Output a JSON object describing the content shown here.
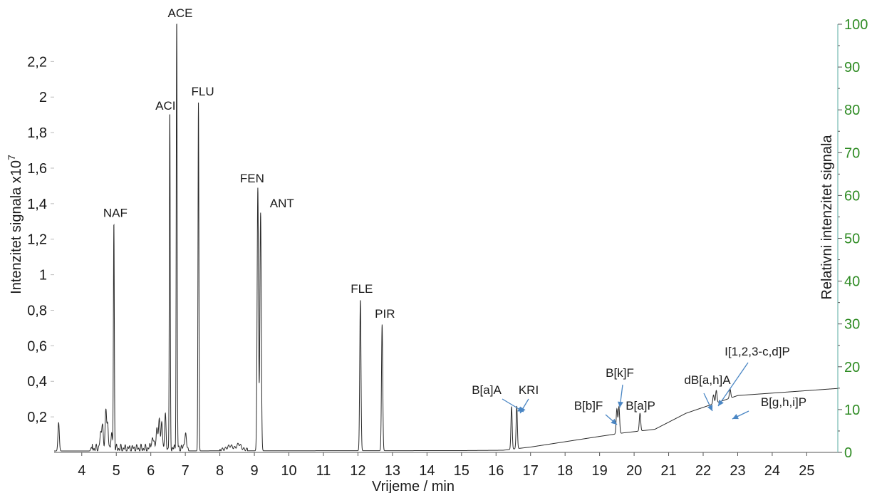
{
  "chart_data": {
    "type": "line",
    "title": "",
    "xlabel": "Vrijeme / min",
    "ylabel_left": "Intenzitet signala x10",
    "ylabel_left_exponent": "7",
    "ylabel_right": "Relativni intenzitet signala",
    "xlim": [
      3.2,
      25.9
    ],
    "ylim_left": [
      0,
      2.41
    ],
    "ylim_right": [
      0,
      100
    ],
    "x_ticks": [
      4,
      5,
      6,
      7,
      8,
      9,
      10,
      11,
      12,
      13,
      14,
      15,
      16,
      17,
      18,
      19,
      20,
      21,
      22,
      23,
      24,
      25
    ],
    "x_tick_labels": [
      "4",
      "5",
      "6",
      "7",
      "8",
      "9",
      "10",
      "11",
      "12",
      "13",
      "14",
      "15",
      "16",
      "17",
      "18",
      "19",
      "20",
      "21",
      "22",
      "23",
      "24",
      "25"
    ],
    "y_left_ticks": [
      0.2,
      0.4,
      0.6,
      0.8,
      1,
      1.2,
      1.4,
      1.6,
      1.8,
      2,
      2.2
    ],
    "y_left_tick_labels": [
      "0,2",
      "0,4",
      "0,6",
      "0,8",
      "1",
      "1,2",
      "1,4",
      "1,6",
      "1,8",
      "2",
      "2,2"
    ],
    "y_right_ticks": [
      0,
      10,
      20,
      30,
      40,
      50,
      60,
      70,
      80,
      90,
      100
    ],
    "y_right_tick_labels": [
      "0",
      "10",
      "20",
      "30",
      "40",
      "50",
      "60",
      "70",
      "80",
      "90",
      "100"
    ],
    "grid": false,
    "colors": {
      "trace": "#2b2b2b",
      "right_axis": "#2e8b23",
      "arrow": "#4a86c4",
      "text": "#1a1a1a"
    },
    "baseline": [
      [
        3.2,
        0.008
      ],
      [
        15,
        0.01
      ],
      [
        16.2,
        0.012
      ],
      [
        17,
        0.03
      ],
      [
        18,
        0.06
      ],
      [
        19,
        0.09
      ],
      [
        19.7,
        0.11
      ],
      [
        20.6,
        0.13
      ],
      [
        21,
        0.17
      ],
      [
        21.5,
        0.22
      ],
      [
        22.1,
        0.26
      ],
      [
        22.7,
        0.3
      ],
      [
        23,
        0.32
      ],
      [
        25.9,
        0.36
      ]
    ],
    "peaks": [
      {
        "t": 3.33,
        "h": 0.16,
        "w": 0.02
      },
      {
        "t": 4.28,
        "h": 0.02,
        "w": 0.02
      },
      {
        "t": 4.55,
        "h": 0.07,
        "w": 0.03
      },
      {
        "t": 4.6,
        "h": 0.13,
        "w": 0.02
      },
      {
        "t": 4.7,
        "h": 0.23,
        "w": 0.02
      },
      {
        "t": 4.75,
        "h": 0.12,
        "w": 0.02
      },
      {
        "t": 4.86,
        "h": 0.08,
        "w": 0.02
      },
      {
        "t": 4.93,
        "h": 1.27,
        "w": 0.013,
        "label": "NAF"
      },
      {
        "t": 6.05,
        "h": 0.05,
        "w": 0.04
      },
      {
        "t": 6.18,
        "h": 0.1,
        "w": 0.03
      },
      {
        "t": 6.25,
        "h": 0.17,
        "w": 0.02
      },
      {
        "t": 6.32,
        "h": 0.14,
        "w": 0.02
      },
      {
        "t": 6.42,
        "h": 0.18,
        "w": 0.02
      },
      {
        "t": 6.55,
        "h": 1.88,
        "w": 0.013,
        "label": "ACI"
      },
      {
        "t": 6.75,
        "h": 2.41,
        "w": 0.013,
        "label": "ACE"
      },
      {
        "t": 7.0,
        "h": 0.07,
        "w": 0.03
      },
      {
        "t": 7.38,
        "h": 1.96,
        "w": 0.013,
        "label": "FLU"
      },
      {
        "t": 8.3,
        "h": 0.02,
        "w": 0.08
      },
      {
        "t": 8.55,
        "h": 0.03,
        "w": 0.06
      },
      {
        "t": 9.1,
        "h": 1.48,
        "w": 0.02,
        "label": "FEN"
      },
      {
        "t": 9.18,
        "h": 1.34,
        "w": 0.02,
        "label": "ANT"
      },
      {
        "t": 12.07,
        "h": 0.85,
        "w": 0.018,
        "label": "FLE"
      },
      {
        "t": 12.7,
        "h": 0.71,
        "w": 0.018,
        "label": "PIR"
      },
      {
        "t": 16.45,
        "h": 0.24,
        "w": 0.018,
        "label": "B[a]A"
      },
      {
        "t": 16.6,
        "h": 0.24,
        "w": 0.018,
        "label": "KRI"
      },
      {
        "t": 19.5,
        "h": 0.14,
        "w": 0.02,
        "label": "B[b]F"
      },
      {
        "t": 19.56,
        "h": 0.15,
        "w": 0.02,
        "label": "B[k]F"
      },
      {
        "t": 20.17,
        "h": 0.1,
        "w": 0.02,
        "label": "B[a]P"
      },
      {
        "t": 22.3,
        "h": 0.05,
        "w": 0.02,
        "label": "dB[a,h]A"
      },
      {
        "t": 22.38,
        "h": 0.07,
        "w": 0.02,
        "label": "I[1,2,3-c,d]P"
      },
      {
        "t": 22.78,
        "h": 0.05,
        "w": 0.02,
        "label": "B[g,h,i]P"
      }
    ]
  }
}
